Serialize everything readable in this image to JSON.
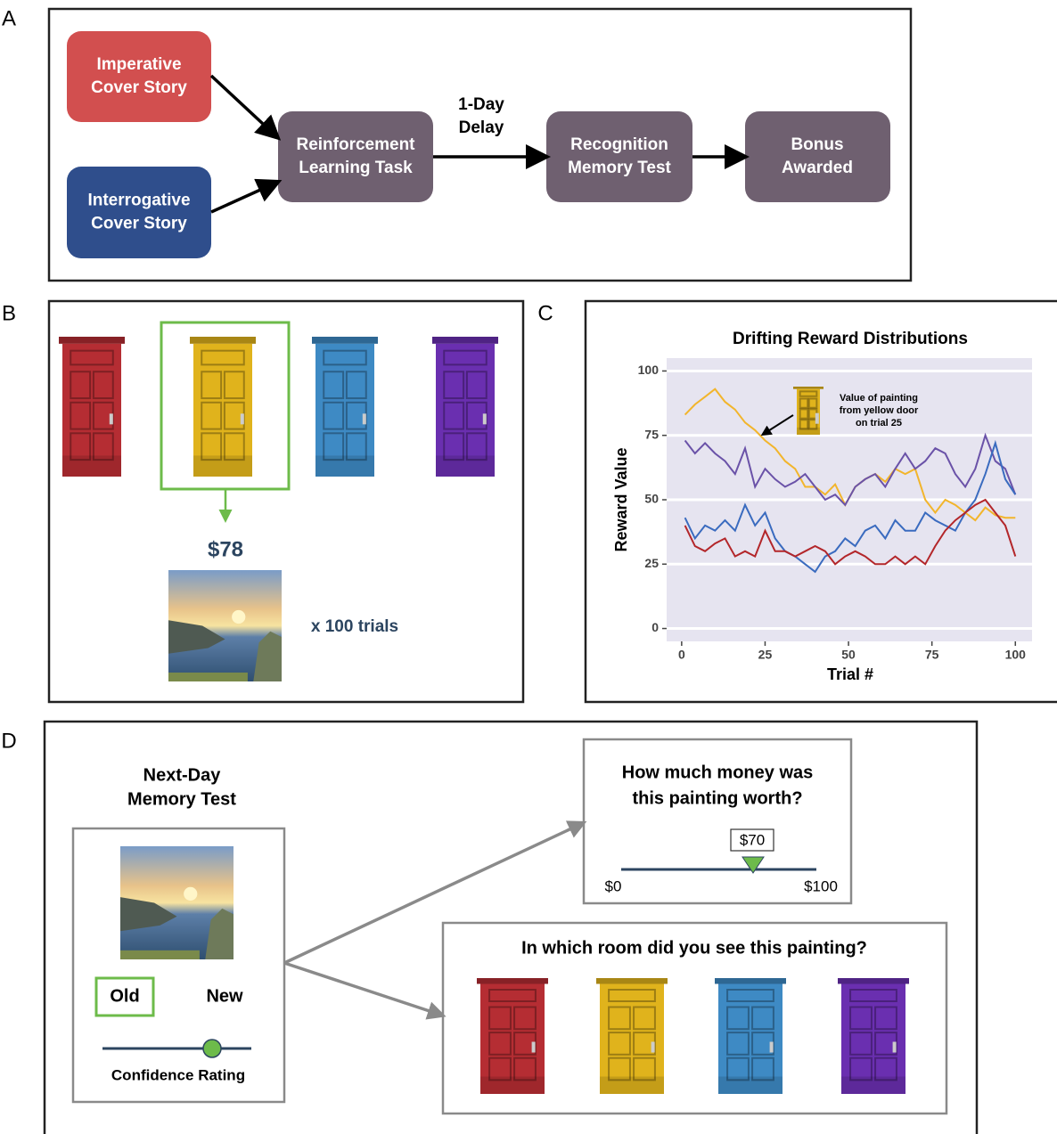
{
  "panel_labels": [
    "A",
    "B",
    "C",
    "D"
  ],
  "panel_a": {
    "nodes": [
      {
        "lines": [
          "Imperative",
          "Cover Story"
        ]
      },
      {
        "lines": [
          "Interrogative",
          "Cover Story"
        ]
      },
      {
        "lines": [
          "Reinforcement",
          "Learning Task"
        ]
      },
      {
        "lines": [
          "Recognition",
          "Memory Test"
        ]
      },
      {
        "lines": [
          "Bonus",
          "Awarded"
        ]
      }
    ],
    "edge_label": [
      "1-Day",
      "Delay"
    ]
  },
  "panel_b": {
    "reward": "$78",
    "trials": "x 100 trials"
  },
  "chart_data": {
    "type": "line",
    "title": "Drifting Reward Distributions",
    "x_label": "Trial #",
    "y_label": "Reward Value",
    "annotation": [
      "Value of painting",
      "from yellow door",
      "on trial 25"
    ],
    "x": [
      1,
      4,
      7,
      10,
      13,
      16,
      19,
      22,
      25,
      28,
      31,
      34,
      37,
      40,
      43,
      46,
      49,
      52,
      55,
      58,
      61,
      64,
      67,
      70,
      73,
      76,
      79,
      82,
      85,
      88,
      91,
      94,
      97,
      100
    ],
    "series": [
      {
        "color": "#f2b52c",
        "values": [
          83,
          87,
          90,
          93,
          88,
          85,
          80,
          77,
          73,
          70,
          65,
          62,
          55,
          55,
          52,
          56,
          48,
          55,
          58,
          60,
          57,
          62,
          60,
          62,
          50,
          45,
          50,
          48,
          45,
          42,
          47,
          44,
          43,
          43
        ]
      },
      {
        "color": "#6a52a8",
        "values": [
          73,
          68,
          72,
          68,
          65,
          60,
          70,
          55,
          62,
          58,
          55,
          57,
          60,
          55,
          50,
          52,
          48,
          55,
          58,
          60,
          55,
          62,
          68,
          62,
          65,
          70,
          68,
          60,
          55,
          62,
          75,
          65,
          62,
          52
        ]
      },
      {
        "color": "#3a6bbf",
        "values": [
          43,
          35,
          40,
          38,
          42,
          38,
          48,
          40,
          45,
          35,
          30,
          28,
          25,
          22,
          28,
          30,
          35,
          32,
          38,
          40,
          35,
          42,
          38,
          38,
          45,
          42,
          40,
          38,
          45,
          50,
          60,
          72,
          58,
          52
        ]
      },
      {
        "color": "#b3262a",
        "values": [
          40,
          32,
          30,
          33,
          35,
          28,
          30,
          28,
          38,
          30,
          30,
          28,
          30,
          32,
          30,
          25,
          28,
          30,
          28,
          25,
          25,
          28,
          25,
          28,
          25,
          32,
          38,
          42,
          45,
          48,
          50,
          45,
          40,
          28
        ]
      }
    ],
    "xlim": [
      -4.5,
      105
    ],
    "ylim": [
      -5,
      105
    ],
    "xticks": [
      0,
      25,
      50,
      75,
      100
    ],
    "yticks": [
      0,
      25,
      50,
      75,
      100
    ],
    "grid": true
  },
  "panel_d": {
    "title": [
      "Next-Day",
      "Memory Test"
    ],
    "old": "Old",
    "new": "New",
    "confidence": "Confidence Rating",
    "value_question": [
      "How much money was",
      "this painting worth?"
    ],
    "value_response": "$70",
    "slider_min": "$0",
    "slider_max": "$100",
    "room_question": "In which room did you see this painting?"
  }
}
